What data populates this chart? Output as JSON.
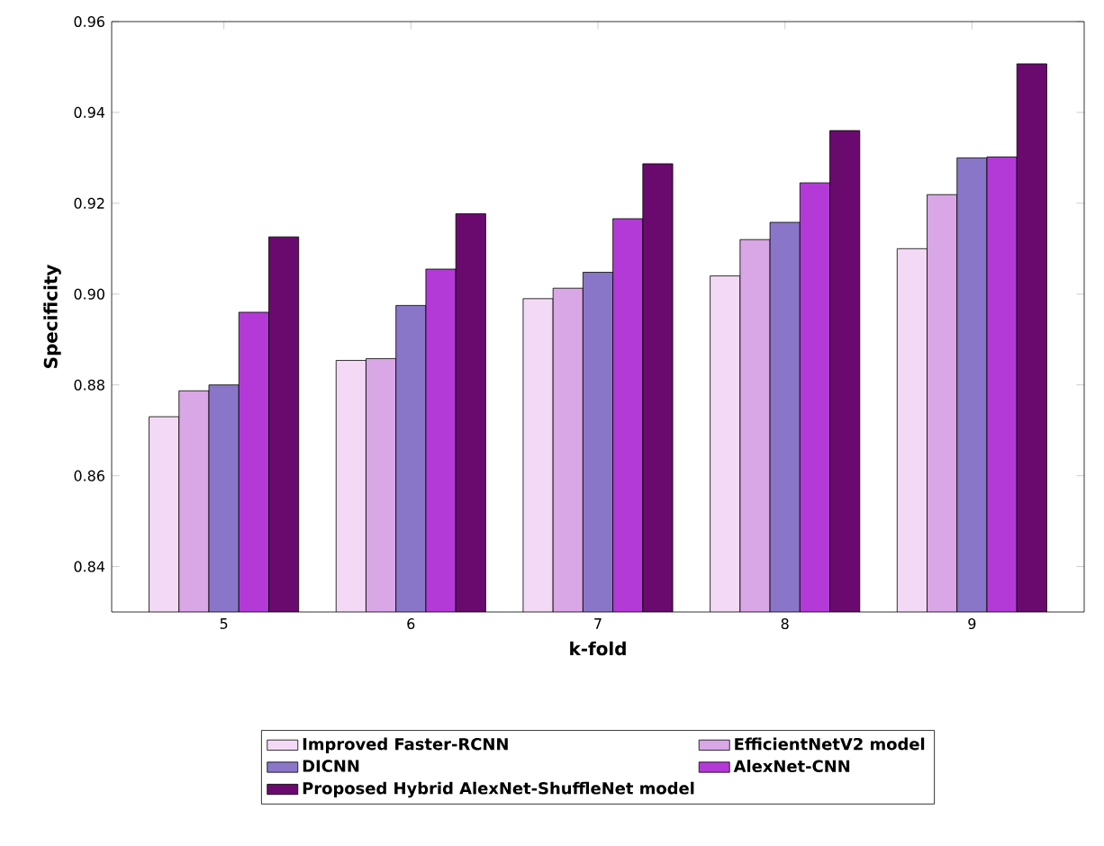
{
  "chart_data": {
    "type": "bar",
    "xlabel": "k-fold",
    "ylabel": "Specificity",
    "categories": [
      "5",
      "6",
      "7",
      "8",
      "9"
    ],
    "series": [
      {
        "name": "Improved Faster-RCNN",
        "color": "#f3d9f5",
        "values": [
          0.873,
          0.8854,
          0.899,
          0.904,
          0.91
        ]
      },
      {
        "name": "EfficientNetV2 model",
        "color": "#d9a6e6",
        "values": [
          0.8787,
          0.8858,
          0.9013,
          0.912,
          0.9219
        ]
      },
      {
        "name": "DICNN",
        "color": "#8a76c8",
        "values": [
          0.88,
          0.8975,
          0.9048,
          0.9158,
          0.93
        ]
      },
      {
        "name": "AlexNet-CNN",
        "color": "#b43ad8",
        "values": [
          0.896,
          0.9055,
          0.9166,
          0.9245,
          0.9302
        ]
      },
      {
        "name": "Proposed Hybrid AlexNet-ShuffleNet model",
        "color": "#6a0a6e",
        "values": [
          0.9126,
          0.9177,
          0.9287,
          0.936,
          0.9507
        ]
      }
    ],
    "ylim": [
      0.83,
      0.96
    ],
    "yticks": [
      0.84,
      0.86,
      0.88,
      {
        "value": 0.9,
        "label": "0.90"
      },
      0.92,
      0.94,
      0.96
    ],
    "legend": "bottom",
    "grid": false
  }
}
